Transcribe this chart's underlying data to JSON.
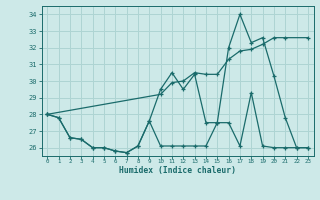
{
  "xlabel": "Humidex (Indice chaleur)",
  "xlim": [
    -0.5,
    23.5
  ],
  "ylim": [
    25.5,
    34.5
  ],
  "yticks": [
    26,
    27,
    28,
    29,
    30,
    31,
    32,
    33,
    34
  ],
  "xticks": [
    0,
    1,
    2,
    3,
    4,
    5,
    6,
    7,
    8,
    9,
    10,
    11,
    12,
    13,
    14,
    15,
    16,
    17,
    18,
    19,
    20,
    21,
    22,
    23
  ],
  "xtick_labels": [
    "0",
    "1",
    "2",
    "3",
    "4",
    "5",
    "6",
    "7",
    "8",
    "9",
    "10",
    "11",
    "12",
    "13",
    "14",
    "15",
    "16",
    "17",
    "18",
    "19",
    "20",
    "21",
    "22",
    "23"
  ],
  "bg_color": "#cde9e8",
  "grid_color": "#aed4d3",
  "line_color": "#1a6b6b",
  "line1_x": [
    0,
    1,
    2,
    3,
    4,
    5,
    6,
    7,
    8,
    9,
    10,
    11,
    12,
    13,
    14,
    15,
    16,
    17,
    18,
    19,
    20,
    21,
    22,
    23
  ],
  "line1_y": [
    28.0,
    27.8,
    26.6,
    26.5,
    26.0,
    26.0,
    25.8,
    25.7,
    26.1,
    27.6,
    26.1,
    26.1,
    26.1,
    26.1,
    26.1,
    27.5,
    27.5,
    26.1,
    29.3,
    26.1,
    26.0,
    26.0,
    26.0,
    26.0
  ],
  "line2_x": [
    0,
    1,
    2,
    3,
    4,
    5,
    6,
    7,
    8,
    9,
    10,
    11,
    12,
    13,
    14,
    15,
    16,
    17,
    18,
    19,
    20,
    21,
    22,
    23
  ],
  "line2_y": [
    28.0,
    27.8,
    26.6,
    26.5,
    26.0,
    26.0,
    25.8,
    25.7,
    26.1,
    27.6,
    29.5,
    30.5,
    29.5,
    30.4,
    27.5,
    27.5,
    32.0,
    34.0,
    32.3,
    32.6,
    30.3,
    27.8,
    26.0,
    26.0
  ],
  "line3_x": [
    0,
    10,
    11,
    12,
    13,
    14,
    15,
    16,
    17,
    18,
    19,
    20,
    21,
    23
  ],
  "line3_y": [
    28.0,
    29.2,
    29.9,
    30.0,
    30.5,
    30.4,
    30.4,
    31.3,
    31.8,
    31.9,
    32.2,
    32.6,
    32.6,
    32.6
  ]
}
